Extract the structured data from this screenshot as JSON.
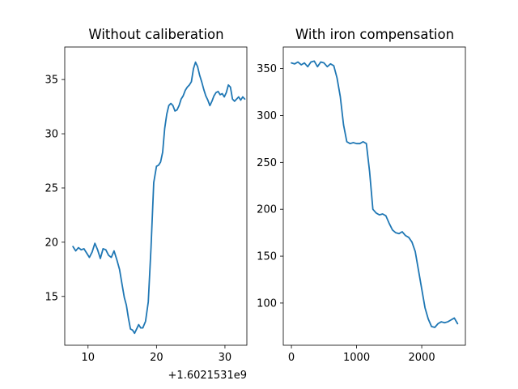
{
  "chart_data": [
    {
      "type": "line",
      "title": "Without caliberation",
      "xlabel": "",
      "ylabel": "",
      "x_offset_label": "+1.6021531e9",
      "xlim": [
        6.6,
        33.2
      ],
      "ylim": [
        10.5,
        38.0
      ],
      "xticks": [
        10,
        20,
        30
      ],
      "xtick_labels": [
        "10",
        "20",
        "30"
      ],
      "yticks": [
        15,
        20,
        25,
        30,
        35
      ],
      "ytick_labels": [
        "15",
        "20",
        "25",
        "30",
        "35"
      ],
      "grid": false,
      "color": "#1f77b4",
      "series": [
        {
          "x": [
            7.8,
            8.2,
            8.6,
            9.0,
            9.4,
            9.8,
            10.2,
            10.6,
            11.0,
            11.4,
            11.8,
            12.2,
            12.6,
            13.0,
            13.4,
            13.8,
            14.2,
            14.6,
            15.0,
            15.3,
            15.6,
            15.9,
            16.2,
            16.5,
            16.8,
            17.1,
            17.4,
            17.7,
            18.0,
            18.4,
            18.8,
            19.2,
            19.6,
            20.0,
            20.3,
            20.6,
            20.9,
            21.2,
            21.5,
            21.8,
            22.1,
            22.4,
            22.7,
            23.0,
            23.3,
            23.6,
            23.9,
            24.2,
            24.5,
            24.8,
            25.1,
            25.4,
            25.7,
            26.0,
            26.3,
            26.6,
            26.9,
            27.2,
            27.5,
            27.8,
            28.1,
            28.4,
            28.7,
            29.0,
            29.3,
            29.6,
            29.9,
            30.2,
            30.5,
            30.8,
            31.1,
            31.4,
            31.7,
            32.0,
            32.3,
            32.6,
            32.9
          ],
          "y": [
            19.6,
            19.2,
            19.5,
            19.3,
            19.4,
            19.0,
            18.6,
            19.1,
            19.9,
            19.3,
            18.5,
            19.4,
            19.3,
            18.8,
            18.6,
            19.2,
            18.4,
            17.5,
            16.0,
            14.9,
            14.2,
            13.0,
            12.0,
            11.9,
            11.6,
            12.0,
            12.4,
            12.1,
            12.1,
            12.7,
            14.5,
            19.5,
            25.5,
            27.0,
            27.1,
            27.4,
            28.3,
            30.5,
            31.8,
            32.6,
            32.8,
            32.6,
            32.1,
            32.2,
            32.6,
            33.2,
            33.5,
            34.0,
            34.3,
            34.5,
            34.8,
            36.0,
            36.6,
            36.2,
            35.4,
            34.8,
            34.1,
            33.5,
            33.1,
            32.6,
            33.0,
            33.5,
            33.8,
            33.9,
            33.6,
            33.7,
            33.4,
            33.8,
            34.5,
            34.3,
            33.2,
            33.0,
            33.2,
            33.4,
            33.1,
            33.4,
            33.2
          ]
        }
      ]
    },
    {
      "type": "line",
      "title": "With iron compensation",
      "xlabel": "",
      "ylabel": "",
      "xlim": [
        -125,
        2670
      ],
      "ylim": [
        55,
        373
      ],
      "xticks": [
        0,
        1000,
        2000
      ],
      "xtick_labels": [
        "0",
        "1000",
        "2000"
      ],
      "yticks": [
        100,
        150,
        200,
        250,
        300,
        350
      ],
      "ytick_labels": [
        "100",
        "150",
        "200",
        "250",
        "300",
        "350"
      ],
      "grid": false,
      "color": "#1f77b4",
      "series": [
        {
          "x": [
            0,
            50,
            100,
            150,
            200,
            250,
            300,
            350,
            400,
            450,
            500,
            550,
            600,
            650,
            700,
            750,
            800,
            850,
            900,
            950,
            1000,
            1050,
            1100,
            1150,
            1200,
            1250,
            1300,
            1350,
            1400,
            1450,
            1500,
            1550,
            1600,
            1650,
            1700,
            1750,
            1800,
            1850,
            1900,
            1950,
            2000,
            2050,
            2100,
            2150,
            2200,
            2250,
            2300,
            2350,
            2400,
            2450,
            2500,
            2550
          ],
          "y": [
            356,
            355,
            357,
            354,
            356,
            352,
            357,
            358,
            352,
            357,
            356,
            352,
            355,
            353,
            340,
            320,
            290,
            272,
            270,
            271,
            270,
            270,
            272,
            270,
            240,
            200,
            196,
            194,
            195,
            193,
            185,
            178,
            175,
            174,
            176,
            172,
            170,
            165,
            155,
            135,
            115,
            95,
            83,
            75,
            74,
            78,
            80,
            79,
            80,
            82,
            84,
            78
          ]
        }
      ]
    }
  ]
}
